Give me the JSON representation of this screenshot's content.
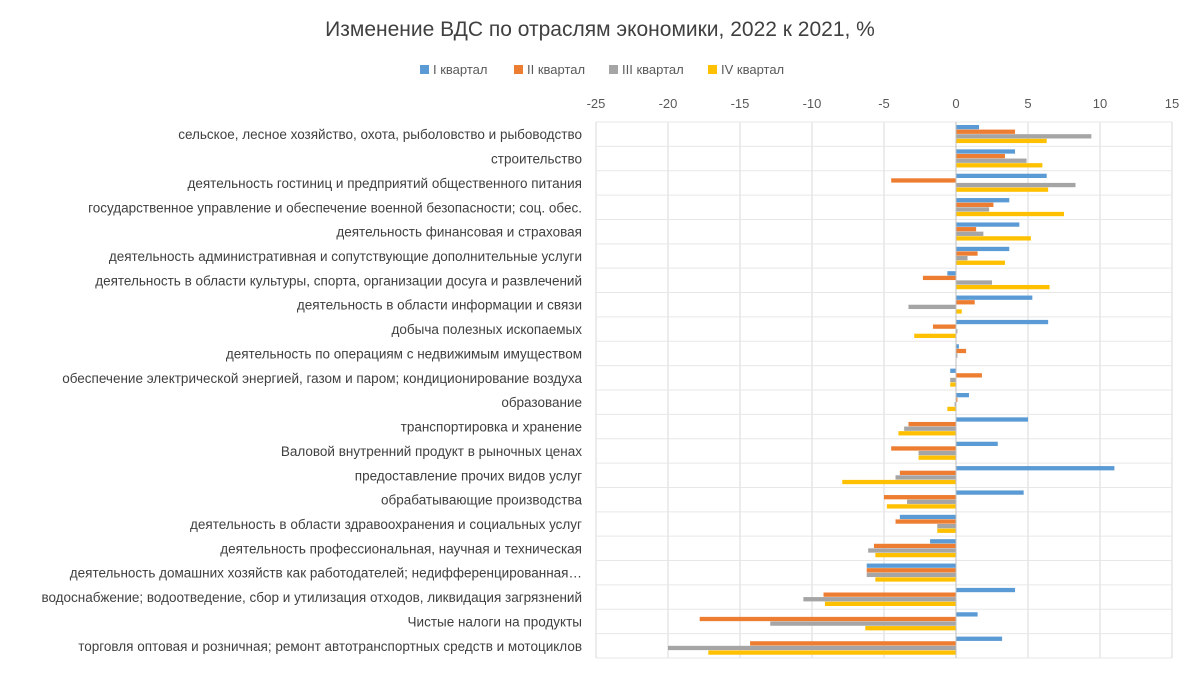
{
  "chart_data": {
    "type": "bar",
    "orientation": "horizontal",
    "title": "Изменение ВДС по отраслям экономики, 2022 к 2021, %",
    "xlim": [
      -25,
      15
    ],
    "xticks": [
      -25,
      -20,
      -15,
      -10,
      -5,
      0,
      5,
      10,
      15
    ],
    "grid": true,
    "legend_position": "top",
    "categories": [
      "сельское, лесное хозяйство, охота, рыболовство и рыбоводство",
      "строительство",
      "деятельность гостиниц и предприятий общественного питания",
      "государственное управление и обеспечение военной безопасности; соц. обес.",
      "деятельность финансовая и страховая",
      "деятельность административная и сопутствующие дополнительные услуги",
      "деятельность в области культуры, спорта, организации досуга и развлечений",
      "деятельность в области информации и связи",
      "добыча полезных ископаемых",
      "деятельность по операциям с недвижимым имуществом",
      "обеспечение электрической энергией, газом и паром; кондиционирование воздуха",
      "образование",
      "транспортировка и хранение",
      "Валовой внутренний продукт в рыночных ценах",
      "предоставление прочих видов услуг",
      "обрабатывающие производства",
      "деятельность в области здравоохранения и социальных услуг",
      "деятельность профессиональная, научная и техническая",
      "деятельность домашних хозяйств как работодателей; недифференцированная…",
      "водоснабжение; водоотведение, сбор и утилизация отходов, ликвидация загрязнений",
      "Чистые налоги на продукты",
      "торговля оптовая и розничная; ремонт автотранспортных средств и мотоциклов"
    ],
    "series": [
      {
        "name": "I квартал",
        "color": "#5b9bd5",
        "values": [
          1.6,
          4.1,
          6.3,
          3.7,
          4.4,
          3.7,
          -0.6,
          5.3,
          6.4,
          0.2,
          -0.4,
          0.9,
          5.0,
          2.9,
          11.0,
          4.7,
          -3.9,
          -1.8,
          -6.2,
          4.1,
          1.5,
          3.2
        ]
      },
      {
        "name": "II квартал",
        "color": "#ed7d31",
        "values": [
          4.1,
          3.4,
          -4.5,
          2.6,
          1.4,
          1.5,
          -2.3,
          1.3,
          -1.6,
          0.7,
          1.8,
          0.1,
          -3.3,
          -4.5,
          -3.9,
          -5.0,
          -4.2,
          -5.7,
          -6.2,
          -9.2,
          -17.8,
          -14.3
        ]
      },
      {
        "name": "III квартал",
        "color": "#a5a5a5",
        "values": [
          9.4,
          4.9,
          8.3,
          2.3,
          1.9,
          0.8,
          2.5,
          -3.3,
          0.1,
          0.1,
          -0.4,
          -0.1,
          -3.6,
          -2.6,
          -4.2,
          -3.4,
          -1.3,
          -6.1,
          -6.2,
          -10.6,
          -12.9,
          -20.0
        ]
      },
      {
        "name": "IV квартал",
        "color": "#ffc000",
        "values": [
          6.3,
          6.0,
          6.4,
          7.5,
          5.2,
          3.4,
          6.5,
          0.4,
          -2.9,
          0.0,
          -0.4,
          -0.6,
          -4.0,
          -2.6,
          -7.9,
          -4.8,
          -1.3,
          -5.6,
          -5.6,
          -9.1,
          -6.3,
          -17.2
        ]
      }
    ]
  }
}
